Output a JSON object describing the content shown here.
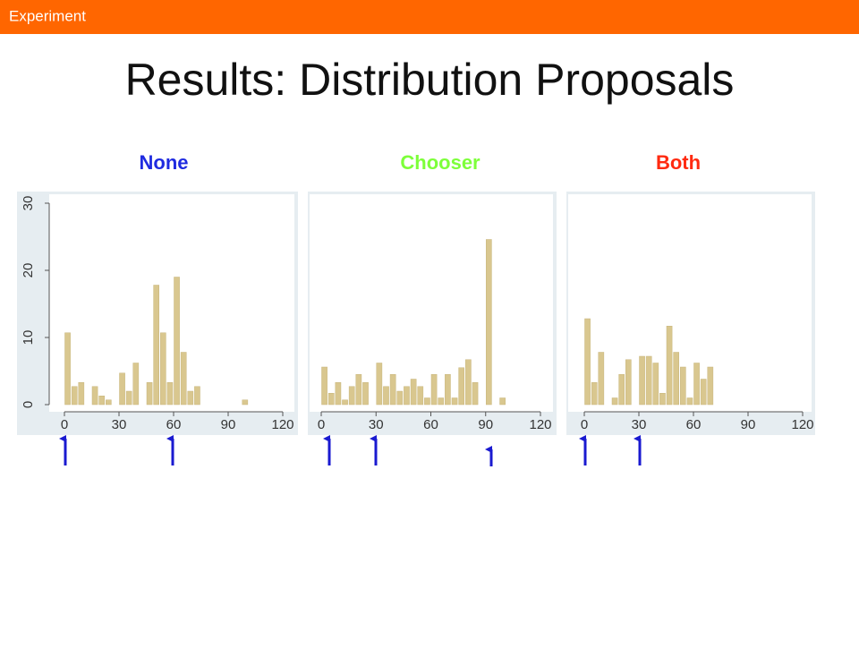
{
  "header": {
    "label": "Experiment"
  },
  "title": "Results: Distribution Proposals",
  "chart_data": [
    {
      "type": "histogram",
      "title": "None",
      "title_color": "#1f2be0",
      "color": "#d9c78f",
      "bins": [
        0,
        3.75,
        7.5,
        11.25,
        15,
        18.75,
        22.5,
        26.25,
        30,
        33.75,
        37.5,
        41.25,
        45,
        48.75,
        52.5,
        56.25,
        60,
        63.75,
        67.5,
        71.25,
        75,
        78.75,
        82.5,
        86.25,
        90,
        93.75,
        97.5,
        101.25,
        105,
        108.75,
        112.5,
        116.25,
        120
      ],
      "values": [
        10.7,
        2.7,
        3.3,
        0,
        2.7,
        1.3,
        0.7,
        0,
        4.7,
        2,
        6.2,
        0,
        3.3,
        17.8,
        10.7,
        3.3,
        19,
        7.8,
        2,
        2.7,
        0,
        0,
        0,
        0,
        0,
        0,
        0.7,
        0,
        0,
        0,
        0,
        0
      ],
      "xlim": [
        0,
        120
      ],
      "xticks": [
        0,
        30,
        60,
        90,
        120
      ],
      "ylim": [
        0,
        30
      ],
      "yticks": [
        0,
        10,
        20,
        30
      ]
    },
    {
      "type": "histogram",
      "title": "Chooser",
      "title_color": "#7dff3a",
      "color": "#d9c78f",
      "bins": [
        0,
        3.75,
        7.5,
        11.25,
        15,
        18.75,
        22.5,
        26.25,
        30,
        33.75,
        37.5,
        41.25,
        45,
        48.75,
        52.5,
        56.25,
        60,
        63.75,
        67.5,
        71.25,
        75,
        78.75,
        82.5,
        86.25,
        90,
        93.75,
        97.5,
        101.25,
        105,
        108.75,
        112.5,
        116.25,
        120
      ],
      "values": [
        5.6,
        1.7,
        3.3,
        0.7,
        2.7,
        4.5,
        3.3,
        0,
        6.2,
        2.7,
        4.5,
        2,
        2.7,
        3.8,
        2.7,
        1,
        4.5,
        1,
        4.5,
        1,
        5.5,
        6.7,
        3.3,
        0,
        24.6,
        0,
        1,
        0,
        0,
        0,
        0,
        0
      ],
      "xlim": [
        0,
        120
      ],
      "xticks": [
        0,
        30,
        60,
        90,
        120
      ],
      "ylim": [
        0,
        30
      ]
    },
    {
      "type": "histogram",
      "title": "Both",
      "title_color": "#ff2a10",
      "color": "#d9c78f",
      "bins": [
        0,
        3.75,
        7.5,
        11.25,
        15,
        18.75,
        22.5,
        26.25,
        30,
        33.75,
        37.5,
        41.25,
        45,
        48.75,
        52.5,
        56.25,
        60,
        63.75,
        67.5,
        71.25,
        75,
        78.75,
        82.5,
        86.25,
        90,
        93.75,
        97.5,
        101.25,
        105,
        108.75,
        112.5,
        116.25,
        120
      ],
      "values": [
        12.8,
        3.3,
        7.8,
        0,
        1,
        4.5,
        6.7,
        0,
        7.2,
        7.2,
        6.2,
        1.7,
        11.7,
        7.8,
        5.6,
        1,
        6.2,
        3.8,
        5.6,
        0,
        0,
        0,
        0,
        0,
        0,
        0,
        0,
        0,
        0,
        0,
        0,
        0
      ],
      "xlim": [
        0,
        120
      ],
      "xticks": [
        0,
        30,
        60,
        90,
        120
      ],
      "ylim": [
        0,
        30
      ]
    }
  ]
}
